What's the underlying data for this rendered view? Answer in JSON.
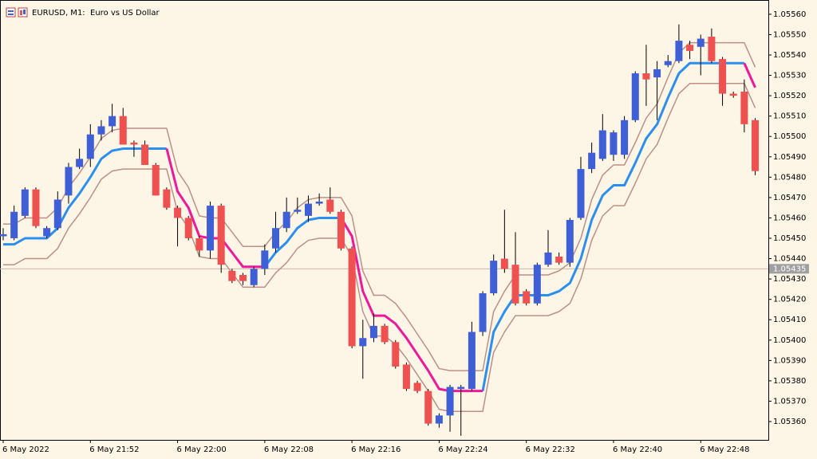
{
  "chart_data": {
    "type": "candlestick",
    "title": "EURUSD, M1:  Euro vs US Dollar",
    "categories": [
      "6 May 2022",
      null,
      null,
      null,
      null,
      null,
      null,
      null,
      "6 May 21:52",
      null,
      null,
      null,
      null,
      null,
      null,
      null,
      "6 May 22:00",
      null,
      null,
      null,
      null,
      null,
      null,
      null,
      "6 May 22:08",
      null,
      null,
      null,
      null,
      null,
      null,
      null,
      "6 May 22:16",
      null,
      null,
      null,
      null,
      null,
      null,
      null,
      "6 May 22:24",
      null,
      null,
      null,
      null,
      null,
      null,
      null,
      "6 May 22:32",
      null,
      null,
      null,
      null,
      null,
      null,
      null,
      "6 May 22:40",
      null,
      null,
      null,
      null,
      null,
      null,
      null,
      "6 May 22:48",
      null,
      null,
      null,
      null,
      null
    ],
    "open": [
      1.05451,
      1.0545,
      1.05461,
      1.05474,
      1.05451,
      1.05455,
      1.05471,
      1.05485,
      1.05489,
      1.05501,
      1.05505,
      1.0551,
      1.05497,
      1.05496,
      1.05486,
      1.05474,
      1.05465,
      1.0546,
      1.0545,
      1.05444,
      1.05466,
      1.05434,
      1.05432,
      1.05427,
      1.05435,
      1.05445,
      1.05455,
      1.05463,
      1.05461,
      1.05467,
      1.05469,
      1.05463,
      1.05445,
      1.05397,
      1.05401,
      1.05407,
      1.05399,
      1.05388,
      1.05379,
      1.05375,
      1.05359,
      1.05363,
      1.05376,
      1.05376,
      1.05404,
      1.05423,
      1.0544,
      1.05437,
      1.05424,
      1.05418,
      1.05437,
      1.05441,
      1.05438,
      1.0546,
      1.05484,
      1.05489,
      1.05491,
      1.05491,
      1.05508,
      1.05531,
      1.05529,
      1.05535,
      1.05537,
      1.05545,
      1.05544,
      1.05549,
      1.05538,
      1.05521,
      1.05522,
      1.05508
    ],
    "high": [
      1.05455,
      1.05466,
      1.05475,
      1.05475,
      1.05456,
      1.05473,
      1.05487,
      1.05494,
      1.05506,
      1.05508,
      1.05516,
      1.05514,
      1.05498,
      1.05498,
      1.05487,
      1.05475,
      1.05466,
      1.05461,
      1.05451,
      1.05468,
      1.05467,
      1.05435,
      1.05433,
      1.05436,
      1.05447,
      1.05463,
      1.0547,
      1.0547,
      1.05471,
      1.05472,
      1.05475,
      1.05464,
      1.05446,
      1.0541,
      1.05413,
      1.05408,
      1.054,
      1.05389,
      1.0538,
      1.05376,
      1.05364,
      1.05378,
      1.05378,
      1.05409,
      1.05424,
      1.05442,
      1.05464,
      1.05453,
      1.05425,
      1.05438,
      1.05454,
      1.05443,
      1.0546,
      1.0549,
      1.05497,
      1.05511,
      1.05503,
      1.0551,
      1.05532,
      1.05545,
      1.05537,
      1.0554,
      1.05555,
      1.05547,
      1.0555,
      1.05553,
      1.05539,
      1.05522,
      1.05528,
      1.05509
    ],
    "low": [
      1.05449,
      1.05449,
      1.0546,
      1.05455,
      1.0545,
      1.05454,
      1.05467,
      1.05484,
      1.05485,
      1.05498,
      1.05502,
      1.05496,
      1.0549,
      1.05486,
      1.05471,
      1.05464,
      1.05446,
      1.05449,
      1.05441,
      1.0544,
      1.05433,
      1.05428,
      1.05427,
      1.05426,
      1.05432,
      1.05443,
      1.05453,
      1.05462,
      1.05458,
      1.05466,
      1.05462,
      1.05444,
      1.05396,
      1.05381,
      1.05399,
      1.05398,
      1.05386,
      1.05375,
      1.05374,
      1.05358,
      1.05357,
      1.05355,
      1.05353,
      1.05375,
      1.05402,
      1.05422,
      1.05433,
      1.05417,
      1.05417,
      1.05417,
      1.05436,
      1.05437,
      1.05436,
      1.05459,
      1.05482,
      1.05488,
      1.05488,
      1.05489,
      1.05507,
      1.05515,
      1.05508,
      1.05534,
      1.05536,
      1.05538,
      1.0553,
      1.05536,
      1.05515,
      1.05519,
      1.05502,
      1.05481
    ],
    "close": [
      1.05452,
      1.05463,
      1.05474,
      1.05456,
      1.05455,
      1.05469,
      1.05485,
      1.05489,
      1.05501,
      1.05505,
      1.0551,
      1.05496,
      1.05496,
      1.05486,
      1.05471,
      1.05465,
      1.0546,
      1.0545,
      1.05444,
      1.05466,
      1.05437,
      1.05429,
      1.05429,
      1.05435,
      1.05444,
      1.05455,
      1.05463,
      1.05464,
      1.05467,
      1.05468,
      1.05463,
      1.05445,
      1.05397,
      1.05401,
      1.05407,
      1.05399,
      1.05387,
      1.05376,
      1.05375,
      1.05359,
      1.05363,
      1.05377,
      1.05377,
      1.05404,
      1.05423,
      1.05439,
      1.05435,
      1.05418,
      1.05418,
      1.05437,
      1.05443,
      1.05438,
      1.05459,
      1.05484,
      1.05492,
      1.05503,
      1.05502,
      1.05508,
      1.05531,
      1.05528,
      1.05533,
      1.05537,
      1.05547,
      1.05542,
      1.05548,
      1.05537,
      1.05521,
      1.0552,
      1.05506,
      1.05483
    ],
    "up_color": "#3f5fd6",
    "down_color": "#ef5050",
    "wick_color": "#000000",
    "series": [
      {
        "color": "#bc9088",
        "values": [
          1.05457,
          1.05457,
          1.0546,
          1.0546,
          1.0546,
          1.05465,
          1.05475,
          1.05482,
          1.0549,
          1.05499,
          1.05503,
          1.05504,
          1.05504,
          1.05504,
          1.05504,
          1.05504,
          1.05483,
          1.05475,
          1.05461,
          1.0546,
          1.0546,
          1.05453,
          1.05446,
          1.05446,
          1.05446,
          1.05453,
          1.05458,
          1.05465,
          1.05469,
          1.0547,
          1.0547,
          1.0547,
          1.05461,
          1.05434,
          1.05422,
          1.05422,
          1.05418,
          1.05411,
          1.05403,
          1.05395,
          1.05386,
          1.05385,
          1.05385,
          1.05385,
          1.05385,
          1.05414,
          1.05424,
          1.05432,
          1.05432,
          1.05432,
          1.05432,
          1.05434,
          1.05438,
          1.0545,
          1.05469,
          1.05481,
          1.05486,
          1.05486,
          1.05497,
          1.05509,
          1.05516,
          1.05529,
          1.05541,
          1.05546,
          1.05546,
          1.05546,
          1.05546,
          1.05546,
          1.05546,
          1.05534
        ]
      },
      {
        "color": "#bc9088",
        "values": [
          1.05437,
          1.05437,
          1.0544,
          1.0544,
          1.0544,
          1.05445,
          1.05455,
          1.05462,
          1.0547,
          1.05479,
          1.05483,
          1.05484,
          1.05484,
          1.05484,
          1.05484,
          1.05484,
          1.05463,
          1.05455,
          1.05441,
          1.0544,
          1.0544,
          1.05433,
          1.05426,
          1.05426,
          1.05426,
          1.05433,
          1.05438,
          1.05445,
          1.05449,
          1.0545,
          1.0545,
          1.0545,
          1.05441,
          1.05414,
          1.05402,
          1.05402,
          1.05398,
          1.05391,
          1.05383,
          1.05375,
          1.05366,
          1.05365,
          1.05365,
          1.05365,
          1.05365,
          1.05394,
          1.05404,
          1.05412,
          1.05412,
          1.05412,
          1.05412,
          1.05414,
          1.05418,
          1.0543,
          1.05449,
          1.05461,
          1.05466,
          1.05466,
          1.05477,
          1.05489,
          1.05496,
          1.05509,
          1.05521,
          1.05526,
          1.05526,
          1.05526,
          1.05526,
          1.05526,
          1.05526,
          1.05514
        ]
      },
      {
        "color": "#2b8ff0",
        "values": [
          1.05447,
          1.05447,
          1.0545,
          1.0545,
          1.0545,
          1.05455,
          1.05465,
          1.05472,
          1.0548,
          1.05489,
          1.05493,
          1.05494,
          1.05494,
          1.05494,
          1.05494,
          1.05494,
          null,
          null,
          null,
          null,
          null,
          null,
          null,
          null,
          1.05436,
          1.05443,
          1.05448,
          1.05455,
          1.05459,
          1.0546,
          1.0546,
          1.0546,
          null,
          null,
          null,
          null,
          null,
          null,
          null,
          null,
          null,
          null,
          null,
          null,
          1.05375,
          1.05404,
          1.05414,
          1.05422,
          1.05422,
          1.05422,
          1.05422,
          1.05424,
          1.05428,
          1.0544,
          1.05459,
          1.05471,
          1.05476,
          1.05476,
          1.05487,
          1.05499,
          1.05506,
          1.05519,
          1.05531,
          1.05536,
          1.05536,
          1.05536,
          1.05536,
          1.05536,
          1.05536,
          null
        ]
      },
      {
        "color": "#f0189a",
        "values": [
          null,
          null,
          null,
          null,
          null,
          null,
          null,
          null,
          null,
          null,
          null,
          null,
          null,
          null,
          null,
          1.05494,
          1.05473,
          1.05465,
          1.05451,
          1.0545,
          1.0545,
          1.05443,
          1.05436,
          1.05436,
          1.05436,
          null,
          null,
          null,
          null,
          null,
          null,
          1.0546,
          1.05451,
          1.05424,
          1.05412,
          1.05412,
          1.05408,
          1.05401,
          1.05393,
          1.05385,
          1.05376,
          1.05375,
          1.05375,
          1.05375,
          1.05375,
          null,
          null,
          null,
          null,
          null,
          null,
          null,
          null,
          null,
          null,
          null,
          null,
          null,
          null,
          null,
          null,
          null,
          null,
          null,
          null,
          null,
          null,
          null,
          1.05536,
          1.05524
        ]
      }
    ],
    "current_price": 1.05435,
    "current_price_color": "#c8b8a8",
    "ylim": [
      1.05351,
      1.05567
    ],
    "yticks": [
      {
        "value": 1.0536,
        "label": "1.05360"
      },
      {
        "value": 1.0537,
        "label": "1.05370"
      },
      {
        "value": 1.0538,
        "label": "1.05380"
      },
      {
        "value": 1.0539,
        "label": "1.05390"
      },
      {
        "value": 1.054,
        "label": "1.05400"
      },
      {
        "value": 1.0541,
        "label": "1.05410"
      },
      {
        "value": 1.0542,
        "label": "1.05420"
      },
      {
        "value": 1.0543,
        "label": "1.05430"
      },
      {
        "value": 1.0544,
        "label": "1.05440"
      },
      {
        "value": 1.0545,
        "label": "1.05450"
      },
      {
        "value": 1.0546,
        "label": "1.05460"
      },
      {
        "value": 1.0547,
        "label": "1.05470"
      },
      {
        "value": 1.0548,
        "label": "1.05480"
      },
      {
        "value": 1.0549,
        "label": "1.05490"
      },
      {
        "value": 1.055,
        "label": "1.05500"
      },
      {
        "value": 1.0551,
        "label": "1.05510"
      },
      {
        "value": 1.0552,
        "label": "1.05520"
      },
      {
        "value": 1.0553,
        "label": "1.05530"
      },
      {
        "value": 1.0554,
        "label": "1.05540"
      },
      {
        "value": 1.0555,
        "label": "1.05550"
      },
      {
        "value": 1.0556,
        "label": "1.05560"
      }
    ],
    "grid": false
  }
}
